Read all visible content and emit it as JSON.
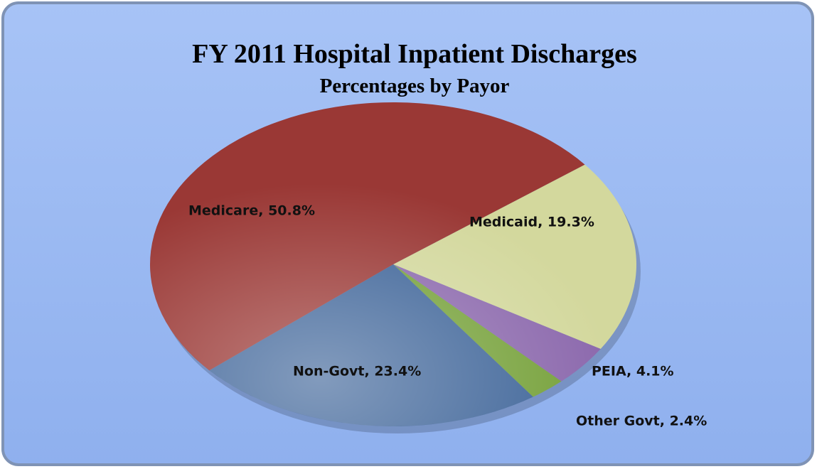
{
  "chart_data": {
    "type": "pie",
    "title": "FY 2011 Hospital Inpatient Discharges",
    "subtitle": "Percentages by Payor",
    "values": [
      19.3,
      4.1,
      2.4,
      23.4,
      50.8
    ],
    "value_labels": [
      "Medicaid, 19.3%",
      "PEIA, 4.1%",
      "Other Govt, 2.4%",
      "Non-Govt, 23.4%",
      "Medicare, 50.8%"
    ],
    "colors": [
      "#d3d89d",
      "#8c69ad",
      "#76a13a",
      "#3f6599",
      "#9a3835"
    ]
  }
}
